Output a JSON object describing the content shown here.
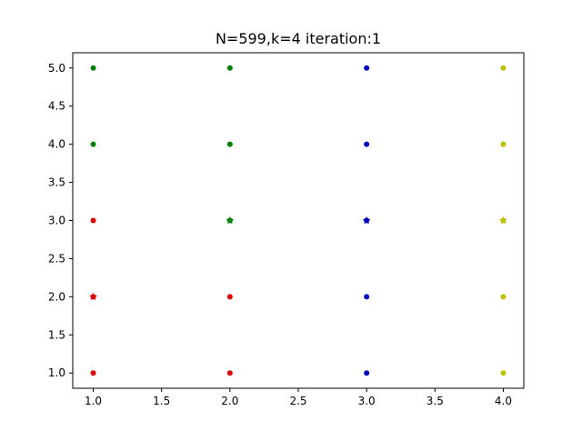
{
  "chart_data": {
    "type": "scatter",
    "title": "N=599,k=4  iteration:1",
    "xlabel": "",
    "ylabel": "",
    "xlim": [
      0.85,
      4.15
    ],
    "ylim": [
      0.8,
      5.2
    ],
    "xticks": [
      1.0,
      1.5,
      2.0,
      2.5,
      3.0,
      3.5,
      4.0
    ],
    "xtick_labels": [
      "1.0",
      "1.5",
      "2.0",
      "2.5",
      "3.0",
      "3.5",
      "4.0"
    ],
    "yticks": [
      1.0,
      1.5,
      2.0,
      2.5,
      3.0,
      3.5,
      4.0,
      4.5,
      5.0
    ],
    "ytick_labels": [
      "1.0",
      "1.5",
      "2.0",
      "2.5",
      "3.0",
      "3.5",
      "4.0",
      "4.5",
      "5.0"
    ],
    "grid": false,
    "legend": "none",
    "series": [
      {
        "color": "#dd0000",
        "points": [
          [
            1,
            1
          ],
          [
            1,
            2
          ],
          [
            1,
            3
          ],
          [
            2,
            1
          ],
          [
            2,
            2
          ]
        ],
        "centroid": [
          1,
          2
        ]
      },
      {
        "color": "#008000",
        "points": [
          [
            1,
            4
          ],
          [
            1,
            5
          ],
          [
            2,
            3
          ],
          [
            2,
            4
          ],
          [
            2,
            5
          ]
        ],
        "centroid": [
          2,
          3
        ]
      },
      {
        "color": "#0000bf",
        "points": [
          [
            3,
            1
          ],
          [
            3,
            2
          ],
          [
            3,
            3
          ],
          [
            3,
            4
          ],
          [
            3,
            5
          ]
        ],
        "centroid": [
          3,
          3
        ]
      },
      {
        "color": "#bfbf00",
        "points": [
          [
            4,
            1
          ],
          [
            4,
            2
          ],
          [
            4,
            3
          ],
          [
            4,
            4
          ],
          [
            4,
            5
          ]
        ],
        "centroid": [
          4,
          3
        ]
      }
    ]
  }
}
